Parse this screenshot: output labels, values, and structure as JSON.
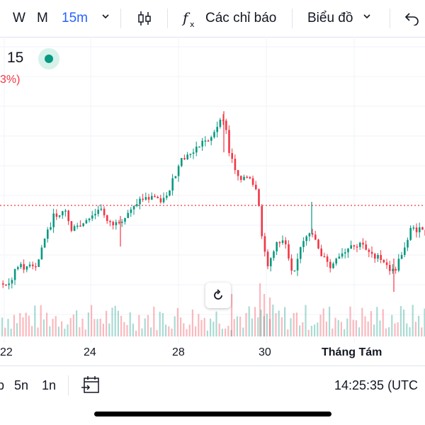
{
  "toolbar": {
    "interval_w": "W",
    "interval_m": "M",
    "interval_active": "15m",
    "indicators_label": "Các chỉ báo",
    "chart_type_label": "Biểu đồ"
  },
  "legend": {
    "value": "15",
    "change": "3%)"
  },
  "chart_data": {
    "type": "candlestick",
    "x_labels": [
      "22",
      "24",
      "28",
      "30",
      "Tháng Tám"
    ],
    "reference_line": "dotted red price line",
    "up_color": "#089981",
    "down_color": "#f23645"
  },
  "range_bar": {
    "items": [
      "p",
      "5n",
      "1n"
    ],
    "clock": "14:25:35 (UTC"
  }
}
